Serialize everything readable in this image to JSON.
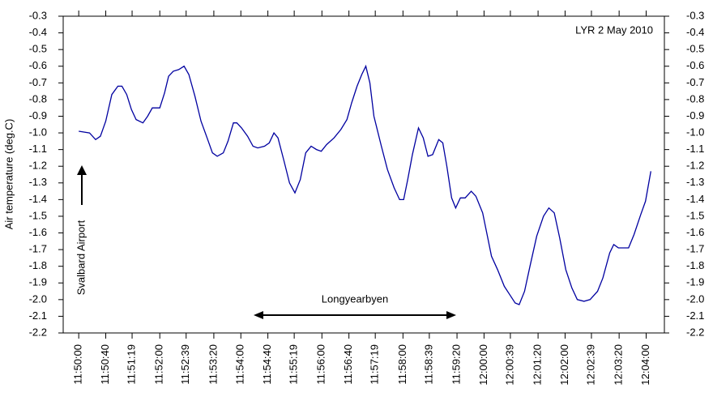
{
  "chart_data": {
    "type": "line",
    "title": "LYR 2 May 2010",
    "y_label": "Air temperature (deg.C)",
    "annotations": [
      "Svalbard Airport",
      "Longyearbyen"
    ],
    "x": [
      42600,
      42616,
      42625,
      42632,
      42640,
      42649,
      42658,
      42664,
      42671,
      42678,
      42685,
      42695,
      42702,
      42709,
      42720,
      42727,
      42733,
      42740,
      42748,
      42756,
      42763,
      42772,
      42781,
      42790,
      42798,
      42805,
      42814,
      42821,
      42829,
      42834,
      42841,
      42850,
      42858,
      42865,
      42875,
      42882,
      42889,
      42895,
      42904,
      42912,
      42920,
      42928,
      42936,
      42944,
      42952,
      42959,
      42967,
      42978,
      42988,
      42997,
      43004,
      43012,
      43019,
      43025,
      43031,
      43037,
      43048,
      43057,
      43067,
      43075,
      43081,
      43087,
      43094,
      43103,
      43110,
      43117,
      43124,
      43133,
      43139,
      43145,
      43152,
      43158,
      43165,
      43172,
      43181,
      43188,
      43198,
      43205,
      43211,
      43220,
      43230,
      43238,
      43246,
      43252,
      43260,
      43268,
      43278,
      43288,
      43296,
      43304,
      43312,
      43321,
      43330,
      43338,
      43348,
      43357,
      43368,
      43376,
      43386,
      43392,
      43399,
      43414,
      43422,
      43432,
      43439,
      43447
    ],
    "series": [
      {
        "color": "#0000a0",
        "values": [
          -0.99,
          -1.0,
          -1.04,
          -1.02,
          -0.93,
          -0.77,
          -0.72,
          -0.72,
          -0.77,
          -0.86,
          -0.92,
          -0.94,
          -0.9,
          -0.85,
          -0.85,
          -0.76,
          -0.66,
          -0.63,
          -0.62,
          -0.6,
          -0.65,
          -0.78,
          -0.93,
          -1.03,
          -1.12,
          -1.14,
          -1.12,
          -1.05,
          -0.94,
          -0.94,
          -0.97,
          -1.02,
          -1.08,
          -1.09,
          -1.08,
          -1.06,
          -1.0,
          -1.03,
          -1.17,
          -1.3,
          -1.36,
          -1.28,
          -1.12,
          -1.08,
          -1.1,
          -1.11,
          -1.07,
          -1.03,
          -0.98,
          -0.92,
          -0.82,
          -0.72,
          -0.65,
          -0.6,
          -0.7,
          -0.9,
          -1.08,
          -1.22,
          -1.33,
          -1.4,
          -1.4,
          -1.28,
          -1.13,
          -0.97,
          -1.03,
          -1.14,
          -1.13,
          -1.04,
          -1.06,
          -1.2,
          -1.39,
          -1.45,
          -1.39,
          -1.39,
          -1.35,
          -1.38,
          -1.48,
          -1.62,
          -1.74,
          -1.82,
          -1.92,
          -1.97,
          -2.02,
          -2.03,
          -1.95,
          -1.8,
          -1.62,
          -1.5,
          -1.45,
          -1.48,
          -1.63,
          -1.82,
          -1.93,
          -2.0,
          -2.01,
          -2.0,
          -1.95,
          -1.87,
          -1.72,
          -1.67,
          -1.69,
          -1.69,
          -1.61,
          -1.49,
          -1.41,
          -1.23
        ]
      }
    ],
    "xlim": [
      42577,
      43467
    ],
    "xticks": [
      {
        "value": 42600,
        "label": "11:50:00"
      },
      {
        "value": 42640,
        "label": "11:50:40"
      },
      {
        "value": 42679,
        "label": "11:51:19"
      },
      {
        "value": 42720,
        "label": "11:52:00"
      },
      {
        "value": 42759,
        "label": "11:52:39"
      },
      {
        "value": 42800,
        "label": "11:53:20"
      },
      {
        "value": 42840,
        "label": "11:54:00"
      },
      {
        "value": 42880,
        "label": "11:54:40"
      },
      {
        "value": 42919,
        "label": "11:55:19"
      },
      {
        "value": 42960,
        "label": "11:56:00"
      },
      {
        "value": 43000,
        "label": "11:56:40"
      },
      {
        "value": 43039,
        "label": "11:57:19"
      },
      {
        "value": 43080,
        "label": "11:58:00"
      },
      {
        "value": 43119,
        "label": "11:58:39"
      },
      {
        "value": 43160,
        "label": "11:59:20"
      },
      {
        "value": 43200,
        "label": "12:00:00"
      },
      {
        "value": 43239,
        "label": "12:00:39"
      },
      {
        "value": 43280,
        "label": "12:01:20"
      },
      {
        "value": 43320,
        "label": "12:02:00"
      },
      {
        "value": 43359,
        "label": "12:02:39"
      },
      {
        "value": 43400,
        "label": "12:03:20"
      },
      {
        "value": 43440,
        "label": "12:04:00"
      }
    ],
    "ylim": [
      -2.2,
      -0.3
    ],
    "yticks": [
      -0.3,
      -0.4,
      -0.5,
      -0.6,
      -0.7,
      -0.8,
      -0.9,
      {
        "value": -1,
        "label": "-1.0"
      },
      -1.1,
      -1.2,
      -1.3,
      -1.4,
      -1.5,
      -1.6,
      -1.7,
      -1.8,
      -1.9,
      {
        "value": -2,
        "label": "-2.0"
      },
      -2.1,
      -2.2
    ]
  }
}
